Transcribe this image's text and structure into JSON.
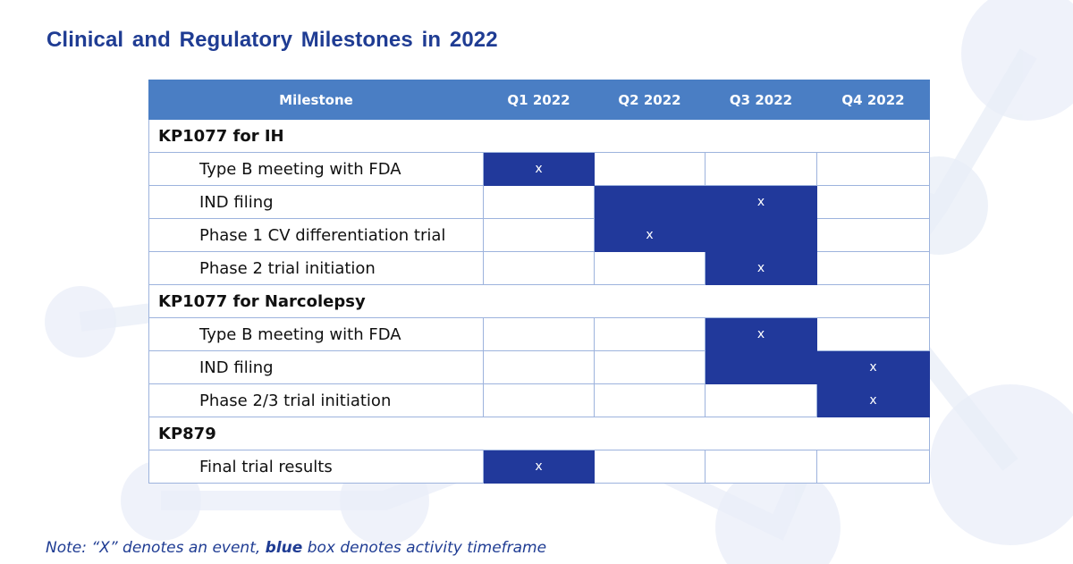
{
  "title": "Clinical and Regulatory Milestones in 2022",
  "columns": [
    "Milestone",
    "Q1 2022",
    "Q2 2022",
    "Q3 2022",
    "Q4 2022"
  ],
  "groups": [
    {
      "name": "KP1077 for IH",
      "rows": [
        {
          "label": "Type B meeting with FDA",
          "cells": [
            {
              "fill": true,
              "mark": "x"
            },
            {
              "fill": false,
              "mark": ""
            },
            {
              "fill": false,
              "mark": ""
            },
            {
              "fill": false,
              "mark": ""
            }
          ]
        },
        {
          "label": "IND filing",
          "cells": [
            {
              "fill": false,
              "mark": ""
            },
            {
              "fill": true,
              "mark": ""
            },
            {
              "fill": true,
              "mark": "x"
            },
            {
              "fill": false,
              "mark": ""
            }
          ]
        },
        {
          "label": "Phase 1 CV differentiation trial",
          "cells": [
            {
              "fill": false,
              "mark": ""
            },
            {
              "fill": true,
              "mark": "x"
            },
            {
              "fill": true,
              "mark": ""
            },
            {
              "fill": false,
              "mark": ""
            }
          ]
        },
        {
          "label": "Phase 2 trial initiation",
          "cells": [
            {
              "fill": false,
              "mark": ""
            },
            {
              "fill": false,
              "mark": ""
            },
            {
              "fill": true,
              "mark": "x"
            },
            {
              "fill": false,
              "mark": ""
            }
          ]
        }
      ]
    },
    {
      "name": "KP1077 for Narcolepsy",
      "rows": [
        {
          "label": "Type B meeting with FDA",
          "cells": [
            {
              "fill": false,
              "mark": ""
            },
            {
              "fill": false,
              "mark": ""
            },
            {
              "fill": true,
              "mark": "x"
            },
            {
              "fill": false,
              "mark": ""
            }
          ]
        },
        {
          "label": "IND filing",
          "cells": [
            {
              "fill": false,
              "mark": ""
            },
            {
              "fill": false,
              "mark": ""
            },
            {
              "fill": true,
              "mark": ""
            },
            {
              "fill": true,
              "mark": "x"
            }
          ]
        },
        {
          "label": "Phase 2/3 trial initiation",
          "cells": [
            {
              "fill": false,
              "mark": ""
            },
            {
              "fill": false,
              "mark": ""
            },
            {
              "fill": false,
              "mark": ""
            },
            {
              "fill": true,
              "mark": "x"
            }
          ]
        }
      ]
    },
    {
      "name": "KP879",
      "rows": [
        {
          "label": "Final trial results",
          "cells": [
            {
              "fill": true,
              "mark": "x"
            },
            {
              "fill": false,
              "mark": ""
            },
            {
              "fill": false,
              "mark": ""
            },
            {
              "fill": false,
              "mark": ""
            }
          ]
        }
      ]
    }
  ],
  "note": {
    "prefix": "Note:  “X” denotes an event, ",
    "emphasis": "blue",
    "suffix": " box denotes activity timeframe"
  },
  "colors": {
    "title": "#1f3c93",
    "header_bg": "#4a7ec4",
    "activity_fill": "#21399b",
    "grid": "#9db3dd"
  }
}
